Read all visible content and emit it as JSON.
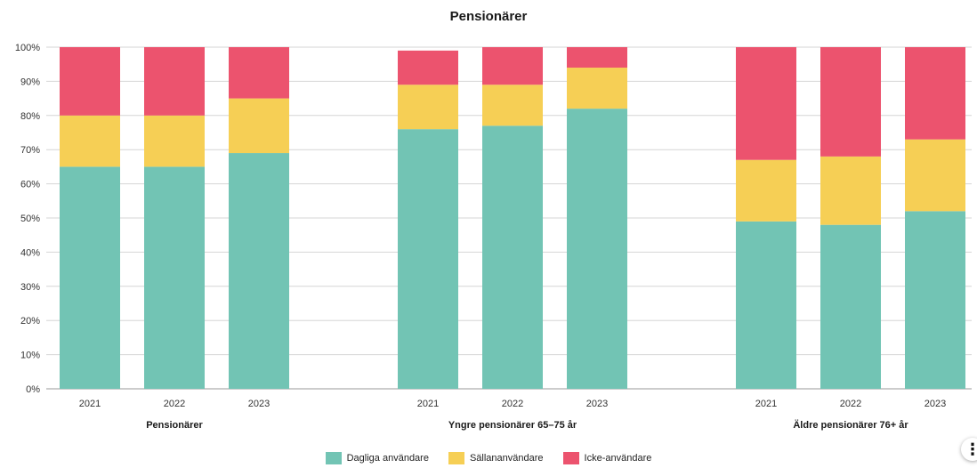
{
  "chart_data": {
    "type": "bar",
    "stacked": true,
    "title": "Pensionärer",
    "y_tick_labels": [
      "0%",
      "10%",
      "20%",
      "30%",
      "40%",
      "50%",
      "60%",
      "70%",
      "80%",
      "90%",
      "100%"
    ],
    "ylim": [
      0,
      100
    ],
    "grid": true,
    "legend_position": "bottom",
    "groups": [
      {
        "label": "Pensionärer",
        "categories": [
          "2021",
          "2022",
          "2023"
        ]
      },
      {
        "label": "Yngre pensionärer 65–75 år",
        "categories": [
          "2021",
          "2022",
          "2023"
        ]
      },
      {
        "label": "Äldre pensionärer 76+ år",
        "categories": [
          "2021",
          "2022",
          "2023"
        ]
      }
    ],
    "series": [
      {
        "name": "Dagliga användare",
        "color": "#72c4b4",
        "values": [
          65,
          65,
          69,
          76,
          77,
          82,
          49,
          48,
          52
        ]
      },
      {
        "name": "Sällananvändare",
        "color": "#f6cf55",
        "values": [
          15,
          15,
          16,
          13,
          12,
          12,
          18,
          20,
          21
        ]
      },
      {
        "name": "Icke-användare",
        "color": "#ec536e",
        "values": [
          20,
          20,
          15,
          10,
          11,
          6,
          33,
          32,
          27
        ]
      }
    ]
  },
  "menu_icon": "more-vertical-icon"
}
